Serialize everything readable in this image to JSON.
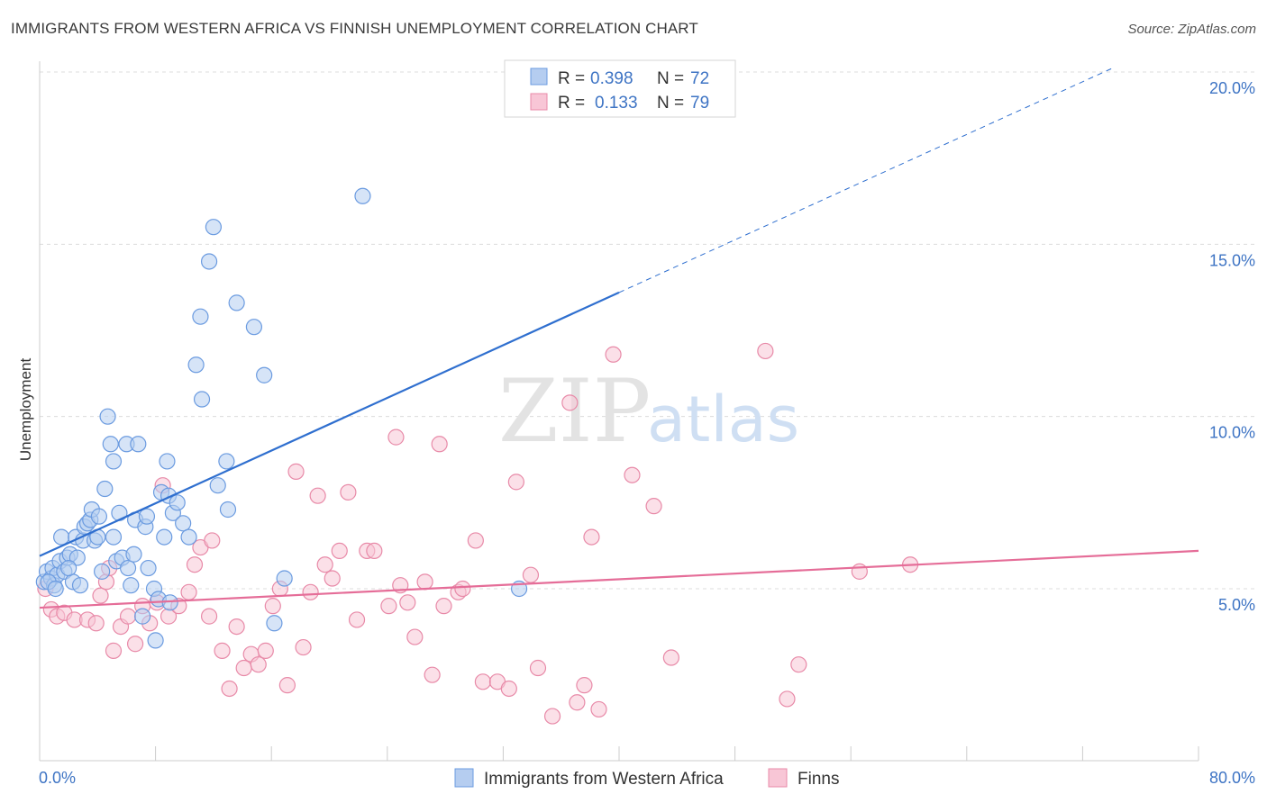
{
  "title": "IMMIGRANTS FROM WESTERN AFRICA VS FINNISH UNEMPLOYMENT CORRELATION CHART",
  "source": "Source: ZipAtlas.com",
  "watermark": {
    "zip": "ZIP",
    "atlas": "atlas"
  },
  "legend_box": {
    "r_label": "R =",
    "n_label": "N =",
    "entries": [
      {
        "r": "0.398",
        "n": "72",
        "fill": "#b5cdf0",
        "stroke": "#6b9be0"
      },
      {
        "r": "0.133",
        "n": "79",
        "fill": "#f8c6d6",
        "stroke": "#e88aa8"
      }
    ]
  },
  "chart_data": {
    "type": "scatter",
    "xlabel": "",
    "ylabel": "Unemployment",
    "xlim": [
      0,
      80
    ],
    "ylim": [
      0.5,
      20.5
    ],
    "x_tick_labels": [
      "0.0%",
      "80.0%"
    ],
    "y_ticks": [
      5,
      10,
      15,
      20
    ],
    "y_tick_labels": [
      "5.0%",
      "10.0%",
      "15.0%",
      "20.0%"
    ],
    "grid": "horizontal dashed",
    "legend_position": "bottom-center",
    "series": [
      {
        "name": "Immigrants from Western Africa",
        "color": "#6b9be0",
        "fill": "#b5cdf0",
        "trend_color": "#2f6fcf",
        "trend": {
          "x0": 0,
          "y0": 5.95,
          "x1": 40,
          "y1": 13.6,
          "dash_to_x": 74,
          "dash_to_y": 20.1
        },
        "points": [
          [
            0.3,
            5.2
          ],
          [
            0.5,
            5.5
          ],
          [
            0.8,
            5.3
          ],
          [
            0.9,
            5.6
          ],
          [
            1.0,
            5.1
          ],
          [
            1.2,
            5.4
          ],
          [
            1.4,
            5.8
          ],
          [
            1.5,
            6.5
          ],
          [
            1.7,
            5.5
          ],
          [
            1.9,
            5.9
          ],
          [
            2.1,
            6.0
          ],
          [
            2.3,
            5.2
          ],
          [
            2.5,
            6.5
          ],
          [
            2.6,
            5.9
          ],
          [
            2.8,
            5.1
          ],
          [
            3.0,
            6.4
          ],
          [
            3.1,
            6.8
          ],
          [
            3.3,
            6.9
          ],
          [
            3.5,
            7.0
          ],
          [
            3.6,
            7.3
          ],
          [
            3.8,
            6.4
          ],
          [
            4.0,
            6.5
          ],
          [
            4.1,
            7.1
          ],
          [
            4.3,
            5.5
          ],
          [
            4.5,
            7.9
          ],
          [
            4.7,
            10.0
          ],
          [
            4.9,
            9.2
          ],
          [
            5.1,
            8.7
          ],
          [
            5.1,
            6.5
          ],
          [
            5.3,
            5.8
          ],
          [
            5.5,
            7.2
          ],
          [
            5.7,
            5.9
          ],
          [
            6.0,
            9.2
          ],
          [
            6.1,
            5.6
          ],
          [
            6.3,
            5.1
          ],
          [
            6.5,
            6.0
          ],
          [
            6.6,
            7.0
          ],
          [
            6.8,
            9.2
          ],
          [
            7.1,
            4.2
          ],
          [
            7.3,
            6.8
          ],
          [
            7.4,
            7.1
          ],
          [
            7.5,
            5.6
          ],
          [
            7.9,
            5.0
          ],
          [
            8.0,
            3.5
          ],
          [
            8.2,
            4.7
          ],
          [
            8.4,
            7.8
          ],
          [
            8.6,
            6.5
          ],
          [
            8.8,
            8.7
          ],
          [
            8.9,
            7.7
          ],
          [
            9.2,
            7.2
          ],
          [
            9.5,
            7.5
          ],
          [
            9.9,
            6.9
          ],
          [
            10.3,
            6.5
          ],
          [
            10.8,
            11.5
          ],
          [
            11.1,
            12.9
          ],
          [
            11.2,
            10.5
          ],
          [
            11.7,
            14.5
          ],
          [
            12.0,
            15.5
          ],
          [
            12.3,
            8.0
          ],
          [
            12.9,
            8.7
          ],
          [
            13.0,
            7.3
          ],
          [
            13.6,
            13.3
          ],
          [
            14.8,
            12.6
          ],
          [
            15.5,
            11.2
          ],
          [
            16.2,
            4.0
          ],
          [
            16.9,
            5.3
          ],
          [
            22.3,
            16.4
          ],
          [
            33.1,
            5.0
          ],
          [
            0.6,
            5.2
          ],
          [
            1.1,
            5.0
          ],
          [
            2.0,
            5.6
          ],
          [
            9.0,
            4.6
          ]
        ]
      },
      {
        "name": "Finns",
        "color": "#e88aa8",
        "fill": "#f8c6d6",
        "trend_color": "#e56d98",
        "trend": {
          "x0": 0,
          "y0": 4.45,
          "x1": 80,
          "y1": 6.1
        },
        "points": [
          [
            0.4,
            5.0
          ],
          [
            0.8,
            4.4
          ],
          [
            1.2,
            4.2
          ],
          [
            1.7,
            4.3
          ],
          [
            2.4,
            4.1
          ],
          [
            3.3,
            4.1
          ],
          [
            3.9,
            4.0
          ],
          [
            4.2,
            4.8
          ],
          [
            4.6,
            5.2
          ],
          [
            4.8,
            5.6
          ],
          [
            5.1,
            3.2
          ],
          [
            5.6,
            3.9
          ],
          [
            6.1,
            4.2
          ],
          [
            6.6,
            3.4
          ],
          [
            7.1,
            4.5
          ],
          [
            7.6,
            4.0
          ],
          [
            8.1,
            4.6
          ],
          [
            8.5,
            8.0
          ],
          [
            8.9,
            4.2
          ],
          [
            9.6,
            4.5
          ],
          [
            10.3,
            4.9
          ],
          [
            10.7,
            5.7
          ],
          [
            11.1,
            6.2
          ],
          [
            11.7,
            4.2
          ],
          [
            11.9,
            6.4
          ],
          [
            12.6,
            3.2
          ],
          [
            13.1,
            2.1
          ],
          [
            13.6,
            3.9
          ],
          [
            14.1,
            2.7
          ],
          [
            14.6,
            3.1
          ],
          [
            15.1,
            2.8
          ],
          [
            15.6,
            3.2
          ],
          [
            16.1,
            4.5
          ],
          [
            16.6,
            5.0
          ],
          [
            17.1,
            2.2
          ],
          [
            17.7,
            8.4
          ],
          [
            18.2,
            3.3
          ],
          [
            18.7,
            4.9
          ],
          [
            19.2,
            7.7
          ],
          [
            19.7,
            5.7
          ],
          [
            20.2,
            5.3
          ],
          [
            20.7,
            6.1
          ],
          [
            21.3,
            7.8
          ],
          [
            21.9,
            4.1
          ],
          [
            22.6,
            6.1
          ],
          [
            23.1,
            6.1
          ],
          [
            24.1,
            4.5
          ],
          [
            24.6,
            9.4
          ],
          [
            24.9,
            5.1
          ],
          [
            25.4,
            4.6
          ],
          [
            25.9,
            3.6
          ],
          [
            26.6,
            5.2
          ],
          [
            27.1,
            2.5
          ],
          [
            27.6,
            9.2
          ],
          [
            27.9,
            4.5
          ],
          [
            28.9,
            4.9
          ],
          [
            29.2,
            5.0
          ],
          [
            30.1,
            6.4
          ],
          [
            30.6,
            2.3
          ],
          [
            31.6,
            2.3
          ],
          [
            32.4,
            2.1
          ],
          [
            32.9,
            8.1
          ],
          [
            33.9,
            5.4
          ],
          [
            34.4,
            2.7
          ],
          [
            35.4,
            1.3
          ],
          [
            36.6,
            10.4
          ],
          [
            37.1,
            1.7
          ],
          [
            37.6,
            2.2
          ],
          [
            38.1,
            6.5
          ],
          [
            38.6,
            1.5
          ],
          [
            39.6,
            11.8
          ],
          [
            40.9,
            8.3
          ],
          [
            42.4,
            7.4
          ],
          [
            43.6,
            3.0
          ],
          [
            50.1,
            11.9
          ],
          [
            51.6,
            1.8
          ],
          [
            52.4,
            2.8
          ],
          [
            56.6,
            5.5
          ],
          [
            60.1,
            5.7
          ]
        ]
      }
    ]
  }
}
